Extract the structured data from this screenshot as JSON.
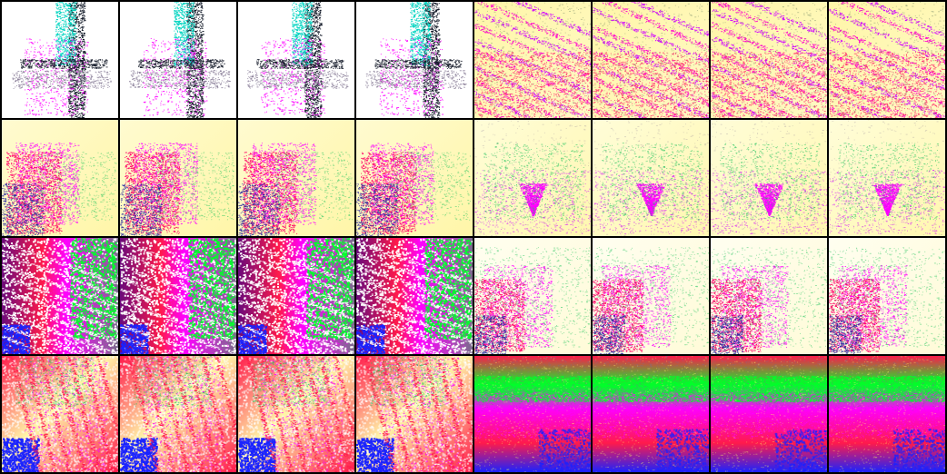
{
  "image": {
    "description_free": true,
    "rows": 4,
    "cols": 8,
    "border_color": "#000000",
    "tiles": [
      {
        "style": "white-scatter",
        "bg": [
          "#ffffff",
          "#ffffff"
        ],
        "marks": [
          "#111827",
          "#00d4c0",
          "#ff00ff",
          "#7a6d8c"
        ]
      },
      {
        "style": "white-scatter",
        "bg": [
          "#ffffff",
          "#ffffff"
        ],
        "marks": [
          "#111827",
          "#00d4c0",
          "#ff00ff",
          "#7a6d8c"
        ]
      },
      {
        "style": "white-scatter",
        "bg": [
          "#ffffff",
          "#ffffff"
        ],
        "marks": [
          "#111827",
          "#00d4c0",
          "#ff00ff",
          "#7a6d8c"
        ]
      },
      {
        "style": "white-scatter",
        "bg": [
          "#ffffff",
          "#ffffff"
        ],
        "marks": [
          "#111827",
          "#00d4c0",
          "#ff00ff",
          "#7a6d8c"
        ]
      },
      {
        "style": "diagonal-streaks",
        "bg": [
          "#fff6a8",
          "#fff9c4"
        ],
        "marks": [
          "#ff00cc",
          "#ff2a6b",
          "#7a8f6b",
          "#d000ff"
        ]
      },
      {
        "style": "diagonal-streaks",
        "bg": [
          "#fff6a8",
          "#fff9c4"
        ],
        "marks": [
          "#ff00cc",
          "#ff2a6b",
          "#7a8f6b",
          "#d000ff"
        ]
      },
      {
        "style": "diagonal-streaks",
        "bg": [
          "#fff6a8",
          "#fff9c4"
        ],
        "marks": [
          "#ff00cc",
          "#ff2a6b",
          "#7a8f6b",
          "#d000ff"
        ]
      },
      {
        "style": "diagonal-streaks",
        "bg": [
          "#fff6a8",
          "#fff9c4"
        ],
        "marks": [
          "#ff00cc",
          "#ff2a6b",
          "#7a8f6b",
          "#d000ff"
        ]
      },
      {
        "style": "left-cluster",
        "bg": [
          "#fffbd0",
          "#fff6a8"
        ],
        "marks": [
          "#ff0066",
          "#ff00ff",
          "#2a2aa0",
          "#22c55e"
        ]
      },
      {
        "style": "left-cluster",
        "bg": [
          "#fffbd0",
          "#fff6a8"
        ],
        "marks": [
          "#ff0066",
          "#ff00ff",
          "#2a2aa0",
          "#22c55e"
        ]
      },
      {
        "style": "left-cluster",
        "bg": [
          "#fffbd0",
          "#fff6a8"
        ],
        "marks": [
          "#ff0066",
          "#ff00ff",
          "#2a2aa0",
          "#22c55e"
        ]
      },
      {
        "style": "left-cluster",
        "bg": [
          "#fffbd0",
          "#fff6a8"
        ],
        "marks": [
          "#ff0066",
          "#ff00ff",
          "#2a2aa0",
          "#22c55e"
        ]
      },
      {
        "style": "center-triangle",
        "bg": [
          "#fffdd8",
          "#fff7b0"
        ],
        "marks": [
          "#ff00ff",
          "#22c55e",
          "#d000ff",
          "#7a6d8c"
        ]
      },
      {
        "style": "center-triangle",
        "bg": [
          "#fffdd8",
          "#fff7b0"
        ],
        "marks": [
          "#ff00ff",
          "#22c55e",
          "#d000ff",
          "#7a6d8c"
        ]
      },
      {
        "style": "center-triangle",
        "bg": [
          "#fffdd8",
          "#fff7b0"
        ],
        "marks": [
          "#ff00ff",
          "#22c55e",
          "#d000ff",
          "#7a6d8c"
        ]
      },
      {
        "style": "center-triangle",
        "bg": [
          "#fffdd8",
          "#fff7b0"
        ],
        "marks": [
          "#ff00ff",
          "#22c55e",
          "#d000ff",
          "#7a6d8c"
        ]
      },
      {
        "style": "vertical-bands",
        "bg": [
          "#6a0a7a",
          "#ff1a4b"
        ],
        "marks": [
          "#ffffff",
          "#00ff2a",
          "#ff00ff",
          "#1a22ff"
        ]
      },
      {
        "style": "vertical-bands",
        "bg": [
          "#6a0a7a",
          "#ff1a4b"
        ],
        "marks": [
          "#ffffff",
          "#00ff2a",
          "#ff00ff",
          "#1a22ff"
        ]
      },
      {
        "style": "vertical-bands",
        "bg": [
          "#6a0a7a",
          "#ff1a4b"
        ],
        "marks": [
          "#ffffff",
          "#00ff2a",
          "#ff00ff",
          "#1a22ff"
        ]
      },
      {
        "style": "vertical-bands",
        "bg": [
          "#6a0a7a",
          "#ff1a4b"
        ],
        "marks": [
          "#ffffff",
          "#00ff2a",
          "#ff00ff",
          "#1a22ff"
        ]
      },
      {
        "style": "left-cluster-light",
        "bg": [
          "#fffef0",
          "#fffbd8"
        ],
        "marks": [
          "#ff0066",
          "#ff00ff",
          "#22c55e",
          "#2a2aa0"
        ]
      },
      {
        "style": "left-cluster-light",
        "bg": [
          "#fffef0",
          "#fffbd8"
        ],
        "marks": [
          "#ff0066",
          "#ff00ff",
          "#22c55e",
          "#2a2aa0"
        ]
      },
      {
        "style": "left-cluster-light",
        "bg": [
          "#fffef0",
          "#fffbd8"
        ],
        "marks": [
          "#ff0066",
          "#ff00ff",
          "#22c55e",
          "#2a2aa0"
        ]
      },
      {
        "style": "left-cluster-light",
        "bg": [
          "#fffef0",
          "#fffbd8"
        ],
        "marks": [
          "#ff0066",
          "#ff00ff",
          "#22c55e",
          "#2a2aa0"
        ]
      },
      {
        "style": "noisy-warm",
        "bg": [
          "#ff1a4b",
          "#fff6a8"
        ],
        "marks": [
          "#ff00ff",
          "#1a22ff",
          "#22c55e",
          "#ffffff"
        ]
      },
      {
        "style": "noisy-warm",
        "bg": [
          "#ff1a4b",
          "#fff6a8"
        ],
        "marks": [
          "#ff00ff",
          "#1a22ff",
          "#22c55e",
          "#ffffff"
        ]
      },
      {
        "style": "noisy-warm",
        "bg": [
          "#ff1a4b",
          "#fff6a8"
        ],
        "marks": [
          "#ff00ff",
          "#1a22ff",
          "#22c55e",
          "#ffffff"
        ]
      },
      {
        "style": "noisy-warm",
        "bg": [
          "#ff1a4b",
          "#fff6a8"
        ],
        "marks": [
          "#ff00ff",
          "#1a22ff",
          "#22c55e",
          "#ffffff"
        ]
      },
      {
        "style": "horizontal-bands",
        "bg": [
          "#ff1a4b",
          "#1a22ff"
        ],
        "marks": [
          "#00ff2a",
          "#ff00ff",
          "#ffff66",
          "#7a6d8c"
        ]
      },
      {
        "style": "horizontal-bands",
        "bg": [
          "#ff1a4b",
          "#1a22ff"
        ],
        "marks": [
          "#00ff2a",
          "#ff00ff",
          "#ffff66",
          "#7a6d8c"
        ]
      },
      {
        "style": "horizontal-bands",
        "bg": [
          "#ff1a4b",
          "#1a22ff"
        ],
        "marks": [
          "#00ff2a",
          "#ff00ff",
          "#ffff66",
          "#7a6d8c"
        ]
      },
      {
        "style": "horizontal-bands",
        "bg": [
          "#ff1a4b",
          "#1a22ff"
        ],
        "marks": [
          "#00ff2a",
          "#ff00ff",
          "#ffff66",
          "#7a6d8c"
        ]
      }
    ]
  }
}
